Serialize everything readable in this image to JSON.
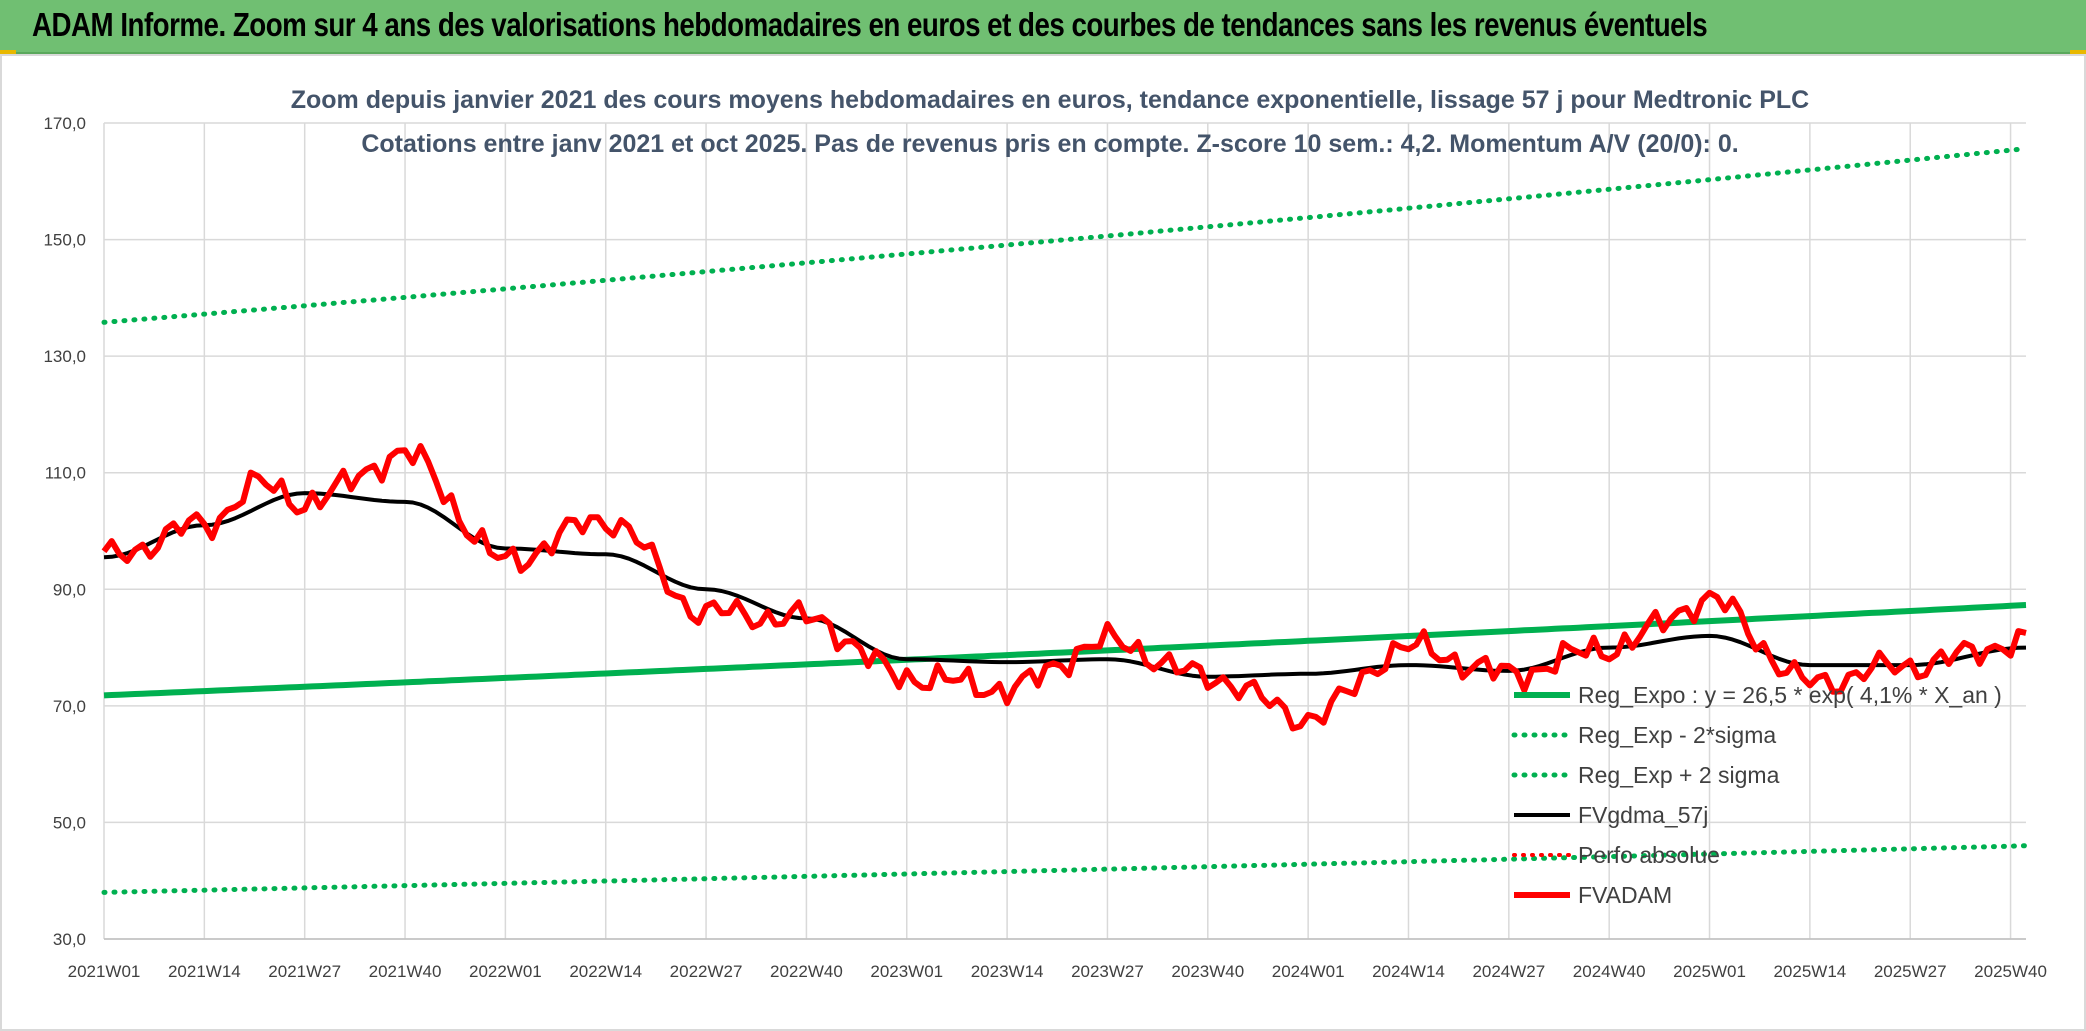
{
  "banner": {
    "title": "ADAM Informe. Zoom sur 4 ans des valorisations hebdomadaires en euros et des courbes de tendances sans les revenus éventuels"
  },
  "colors": {
    "banner_bg": "#70bf72",
    "reg_green": "#00b050",
    "black": "#000000",
    "red": "#ff0000",
    "grid": "#d9d9d9",
    "title_text": "#44546a"
  },
  "chart_data": {
    "type": "line",
    "title_line1": "Zoom depuis janvier 2021 des cours moyens hebdomadaires en euros, tendance exponentielle, lissage 57 j pour Medtronic PLC",
    "title_line2": "Cotations entre janv 2021 et oct 2025. Pas de revenus pris en compte. Z-score 10 sem.: 4,2. Momentum A/V (20/0): 0.",
    "ylim": [
      30,
      170
    ],
    "y_ticks": [
      "30,0",
      "50,0",
      "70,0",
      "90,0",
      "110,0",
      "130,0",
      "150,0",
      "170,0"
    ],
    "x_ticks": [
      "2021W01",
      "2021W14",
      "2021W27",
      "2021W40",
      "2022W01",
      "2022W14",
      "2022W27",
      "2022W40",
      "2023W01",
      "2023W14",
      "2023W27",
      "2023W40",
      "2024W01",
      "2024W14",
      "2024W27",
      "2024W40",
      "2025W01",
      "2025W14",
      "2025W27",
      "2025W40"
    ],
    "n_weeks": 250,
    "legend": [
      {
        "label": "Reg_Expo : y = 26,5 * exp( 4,1% * X_an )",
        "style": "solid-green"
      },
      {
        "label": "Reg_Exp - 2*sigma",
        "style": "dotted-green"
      },
      {
        "label": "Reg_Exp + 2 sigma",
        "style": "dotted-green"
      },
      {
        "label": "FVgdma_57j",
        "style": "solid-black"
      },
      {
        "label": "Perfo absolue",
        "style": "dotted-red"
      },
      {
        "label": "FVADAM",
        "style": "solid-red"
      }
    ],
    "series": [
      {
        "name": "Reg_Expo",
        "start": 71.8,
        "end": 87.3
      },
      {
        "name": "Reg_Exp - 2*sigma",
        "start": 38.0,
        "end": 46.0
      },
      {
        "name": "Reg_Exp + 2 sigma",
        "start": 135.8,
        "end": 165.6
      },
      {
        "name": "FVgdma_57j",
        "points": [
          [
            0,
            95.5
          ],
          [
            13,
            101
          ],
          [
            26,
            106.5
          ],
          [
            39,
            105
          ],
          [
            52,
            97
          ],
          [
            65,
            96
          ],
          [
            78,
            90
          ],
          [
            91,
            85
          ],
          [
            104,
            78
          ],
          [
            117,
            77.5
          ],
          [
            130,
            78
          ],
          [
            143,
            75
          ],
          [
            156,
            75.5
          ],
          [
            169,
            77
          ],
          [
            182,
            76
          ],
          [
            195,
            80
          ],
          [
            208,
            82
          ],
          [
            221,
            77
          ],
          [
            234,
            77
          ],
          [
            249,
            80
          ]
        ]
      },
      {
        "name": "FVADAM",
        "points": [
          [
            0,
            95.5
          ],
          [
            13,
            101
          ],
          [
            20,
            108
          ],
          [
            26,
            105
          ],
          [
            39,
            113
          ],
          [
            52,
            95
          ],
          [
            65,
            102
          ],
          [
            78,
            86
          ],
          [
            91,
            85
          ],
          [
            104,
            75
          ],
          [
            117,
            73
          ],
          [
            130,
            81
          ],
          [
            143,
            75
          ],
          [
            156,
            68
          ],
          [
            169,
            80
          ],
          [
            182,
            75.5
          ],
          [
            195,
            80
          ],
          [
            208,
            88
          ],
          [
            221,
            74
          ],
          [
            234,
            77
          ],
          [
            249,
            81
          ]
        ]
      }
    ]
  }
}
